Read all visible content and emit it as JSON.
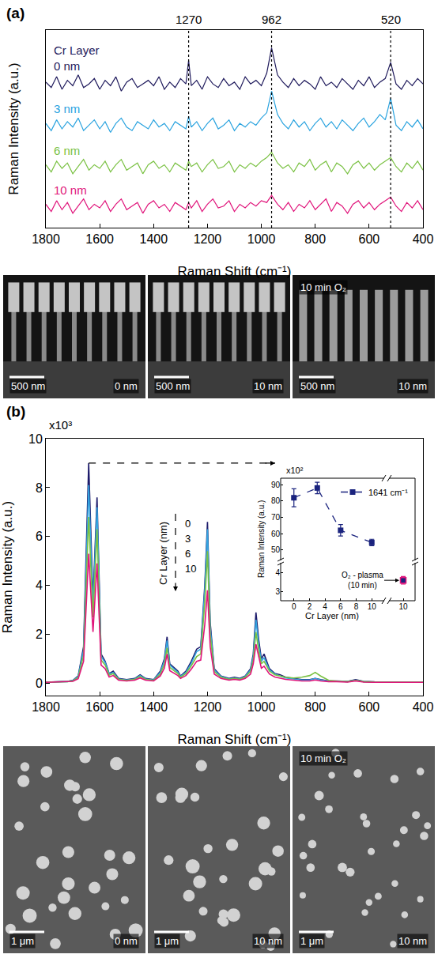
{
  "chart_data": [
    {
      "panel": "(a)",
      "type": "line",
      "x": [
        1800,
        1780,
        1760,
        1740,
        1720,
        1700,
        1680,
        1660,
        1640,
        1620,
        1600,
        1580,
        1560,
        1540,
        1520,
        1500,
        1480,
        1460,
        1440,
        1420,
        1400,
        1380,
        1360,
        1340,
        1320,
        1300,
        1280,
        1270,
        1260,
        1240,
        1220,
        1200,
        1180,
        1160,
        1140,
        1120,
        1100,
        1080,
        1060,
        1040,
        1020,
        1000,
        980,
        962,
        940,
        920,
        900,
        880,
        860,
        840,
        820,
        800,
        780,
        760,
        740,
        720,
        700,
        680,
        660,
        640,
        620,
        600,
        580,
        560,
        540,
        520,
        500,
        480,
        460,
        440,
        420,
        400
      ],
      "series": [
        {
          "name": "0 nm",
          "color": "#1f1a5c",
          "values": [
            81,
            78,
            84,
            77,
            82,
            79,
            85,
            78,
            80,
            83,
            77,
            82,
            79,
            84,
            76,
            81,
            83,
            78,
            80,
            82,
            79,
            84,
            77,
            81,
            78,
            83,
            80,
            93,
            79,
            82,
            77,
            84,
            80,
            78,
            83,
            79,
            81,
            77,
            84,
            80,
            82,
            79,
            86,
            100,
            85,
            81,
            78,
            83,
            79,
            82,
            80,
            77,
            84,
            79,
            81,
            78,
            83,
            80,
            77,
            82,
            79,
            84,
            78,
            81,
            83,
            92,
            80,
            77,
            82,
            79,
            83,
            80
          ]
        },
        {
          "name": "3 nm",
          "color": "#2aa3df",
          "values": [
            58,
            54,
            60,
            55,
            59,
            56,
            61,
            54,
            57,
            60,
            55,
            59,
            53,
            58,
            61,
            56,
            54,
            59,
            57,
            55,
            60,
            56,
            58,
            54,
            59,
            57,
            55,
            62,
            56,
            59,
            54,
            58,
            61,
            55,
            57,
            60,
            54,
            58,
            56,
            59,
            57,
            61,
            64,
            76,
            63,
            58,
            55,
            60,
            56,
            59,
            54,
            58,
            61,
            56,
            59,
            55,
            60,
            57,
            54,
            58,
            61,
            56,
            59,
            63,
            60,
            72,
            57,
            54,
            59,
            56,
            60,
            55
          ]
        },
        {
          "name": "6 nm",
          "color": "#7ac143",
          "values": [
            35,
            31,
            37,
            33,
            36,
            30,
            34,
            38,
            32,
            35,
            33,
            37,
            31,
            35,
            38,
            32,
            34,
            36,
            30,
            35,
            37,
            33,
            35,
            31,
            36,
            34,
            32,
            37,
            34,
            36,
            31,
            35,
            38,
            33,
            34,
            37,
            31,
            35,
            33,
            36,
            34,
            37,
            39,
            42,
            36,
            33,
            35,
            31,
            36,
            34,
            38,
            32,
            35,
            37,
            31,
            36,
            34,
            30,
            35,
            37,
            33,
            36,
            32,
            35,
            37,
            39,
            34,
            31,
            36,
            33,
            37,
            32
          ]
        },
        {
          "name": "10 nm",
          "color": "#e0157b",
          "values": [
            13,
            9,
            15,
            10,
            14,
            8,
            12,
            16,
            10,
            13,
            11,
            15,
            9,
            13,
            16,
            10,
            12,
            14,
            8,
            13,
            15,
            11,
            13,
            9,
            14,
            12,
            10,
            14,
            11,
            15,
            9,
            13,
            16,
            11,
            12,
            15,
            9,
            13,
            11,
            14,
            12,
            15,
            14,
            18,
            13,
            10,
            14,
            9,
            13,
            11,
            15,
            10,
            13,
            16,
            9,
            14,
            12,
            8,
            13,
            15,
            11,
            14,
            10,
            13,
            15,
            17,
            12,
            9,
            14,
            11,
            15,
            10
          ]
        }
      ],
      "legend_title": "Cr Layer",
      "vlines": [
        1270,
        962,
        520
      ],
      "xlabel": "Raman Shift (cm⁻¹)",
      "ylabel": "Raman Intensity (a.u.)",
      "xlim": [
        1800,
        400
      ],
      "xticks": [
        1800,
        1600,
        1400,
        1200,
        1000,
        800,
        600,
        400
      ],
      "ylim": [
        0,
        110
      ],
      "tick_labels": "x",
      "grid": false,
      "images": [
        {
          "scale_bar": "500 nm",
          "label": "0 nm"
        },
        {
          "scale_bar": "500 nm",
          "label": "10 nm"
        },
        {
          "treatment": "10 min O₂",
          "scale_bar": "500 nm",
          "label": "10 nm"
        }
      ]
    },
    {
      "panel": "(b)",
      "type": "line",
      "x": [
        1800,
        1760,
        1720,
        1700,
        1680,
        1660,
        1641,
        1625,
        1610,
        1595,
        1580,
        1565,
        1550,
        1530,
        1500,
        1470,
        1450,
        1430,
        1400,
        1375,
        1360,
        1350,
        1340,
        1320,
        1310,
        1300,
        1280,
        1260,
        1240,
        1225,
        1210,
        1200,
        1190,
        1175,
        1150,
        1120,
        1100,
        1080,
        1060,
        1040,
        1030,
        1020,
        1010,
        1000,
        990,
        970,
        950,
        930,
        910,
        880,
        850,
        820,
        800,
        780,
        750,
        720,
        680,
        650,
        620,
        580,
        540,
        500,
        460,
        430,
        400
      ],
      "series": [
        {
          "name": "0",
          "color": "#1d1b6b",
          "values": [
            0.05,
            0.06,
            0.08,
            0.12,
            0.3,
            1.5,
            9.0,
            3.4,
            7.6,
            1.2,
            0.9,
            0.4,
            0.5,
            0.2,
            0.15,
            0.2,
            0.35,
            0.2,
            0.15,
            0.5,
            1.0,
            1.9,
            0.8,
            0.6,
            0.5,
            0.3,
            0.5,
            0.9,
            1.4,
            1.5,
            4.0,
            6.6,
            2.5,
            0.6,
            0.3,
            0.2,
            0.25,
            0.2,
            0.3,
            0.6,
            1.2,
            2.9,
            1.8,
            1.0,
            1.2,
            0.6,
            0.4,
            0.35,
            0.25,
            0.2,
            0.15,
            0.15,
            0.2,
            0.15,
            0.1,
            0.1,
            0.08,
            0.15,
            0.08,
            0.06,
            0.05,
            0.05,
            0.04,
            0.04,
            0.05
          ]
        },
        {
          "name": "3",
          "color": "#33a4e0",
          "values": [
            0.05,
            0.06,
            0.07,
            0.11,
            0.28,
            1.35,
            8.1,
            3.1,
            7.2,
            1.1,
            0.85,
            0.38,
            0.45,
            0.18,
            0.14,
            0.18,
            0.32,
            0.18,
            0.14,
            0.45,
            0.92,
            1.75,
            0.75,
            0.55,
            0.45,
            0.28,
            0.45,
            0.82,
            1.3,
            1.4,
            3.8,
            6.3,
            2.3,
            0.55,
            0.28,
            0.18,
            0.22,
            0.18,
            0.28,
            0.55,
            1.1,
            2.6,
            1.6,
            0.9,
            1.05,
            0.55,
            0.38,
            0.3,
            0.22,
            0.18,
            0.14,
            0.14,
            0.2,
            0.14,
            0.09,
            0.09,
            0.07,
            0.13,
            0.07,
            0.05,
            0.05,
            0.04,
            0.04,
            0.04,
            0.05
          ]
        },
        {
          "name": "6",
          "color": "#7ac143",
          "values": [
            0.05,
            0.06,
            0.07,
            0.1,
            0.24,
            1.15,
            6.8,
            2.7,
            6.3,
            0.95,
            0.75,
            0.33,
            0.4,
            0.16,
            0.12,
            0.16,
            0.28,
            0.16,
            0.12,
            0.38,
            0.78,
            1.45,
            0.65,
            0.48,
            0.4,
            0.25,
            0.4,
            0.72,
            1.1,
            1.2,
            3.3,
            5.4,
            2.0,
            0.48,
            0.25,
            0.16,
            0.2,
            0.16,
            0.25,
            0.48,
            0.95,
            2.1,
            1.35,
            0.8,
            0.9,
            0.5,
            0.35,
            0.3,
            0.25,
            0.22,
            0.25,
            0.32,
            0.45,
            0.3,
            0.12,
            0.09,
            0.07,
            0.12,
            0.07,
            0.05,
            0.05,
            0.04,
            0.04,
            0.04,
            0.05
          ]
        },
        {
          "name": "10",
          "color": "#e0157b",
          "values": [
            0.04,
            0.05,
            0.06,
            0.08,
            0.19,
            0.9,
            5.3,
            2.1,
            4.9,
            0.75,
            0.6,
            0.26,
            0.32,
            0.13,
            0.1,
            0.13,
            0.22,
            0.13,
            0.1,
            0.3,
            0.62,
            1.2,
            0.52,
            0.38,
            0.32,
            0.2,
            0.32,
            0.58,
            0.9,
            0.95,
            2.4,
            3.8,
            1.5,
            0.38,
            0.2,
            0.13,
            0.16,
            0.13,
            0.2,
            0.38,
            0.8,
            1.6,
            1.05,
            0.62,
            0.7,
            0.38,
            0.26,
            0.22,
            0.16,
            0.13,
            0.1,
            0.1,
            0.14,
            0.1,
            0.07,
            0.07,
            0.05,
            0.1,
            0.05,
            0.04,
            0.04,
            0.03,
            0.03,
            0.03,
            0.04
          ]
        }
      ],
      "legend_title": "Cr Layer (nm)",
      "xlabel": "Raman Shift (cm⁻¹)",
      "ylabel": "Raman Intensity (a.u.)",
      "xlim": [
        1800,
        400
      ],
      "xticks": [
        1800,
        1600,
        1400,
        1200,
        1000,
        800,
        600,
        400
      ],
      "ylim": [
        -0.5,
        10
      ],
      "yticks": [
        0,
        2,
        4,
        6,
        8,
        10
      ],
      "y_exponent_label": "x10³",
      "grid": false,
      "images": [
        {
          "scale_bar": "1 μm",
          "label": "0 nm"
        },
        {
          "scale_bar": "1 μm",
          "label": "10 nm"
        },
        {
          "treatment": "10 min O₂",
          "scale_bar": "1 μm",
          "label": "10 nm"
        }
      ]
    },
    {
      "type": "scatter",
      "x": [
        0,
        3,
        6,
        10
      ],
      "series": [
        {
          "name": "1641 cm⁻¹",
          "color": "#1a237e",
          "values": [
            82,
            88,
            62,
            54.5
          ],
          "errors": [
            5.5,
            3.5,
            3.5,
            2
          ],
          "marker": "square",
          "line_style": "dashed"
        }
      ],
      "xlabel": "Cr Layer (nm)",
      "ylabel": "Raman Intensity (a.u.)",
      "xlim": [
        -1.7,
        11.5
      ],
      "xticks": [
        0,
        2,
        4,
        6,
        8,
        10
      ],
      "ylim": [
        44,
        94
      ],
      "yticks": [
        50,
        60,
        70,
        80,
        90
      ],
      "y_exponent_label": "x10²",
      "legend": "upper right",
      "grid": false,
      "break": {
        "x": [
          10
        ],
        "values": [
          3.6
        ],
        "errors": [
          0.2
        ],
        "color": "#e0157b",
        "xlim": [
          8.3,
          11.5
        ],
        "xticks": [
          10
        ],
        "ylim": [
          2.5,
          4.5
        ],
        "yticks": [
          3,
          4
        ],
        "annotation": [
          "O₂ - plasma",
          "(10 min)"
        ]
      }
    }
  ]
}
